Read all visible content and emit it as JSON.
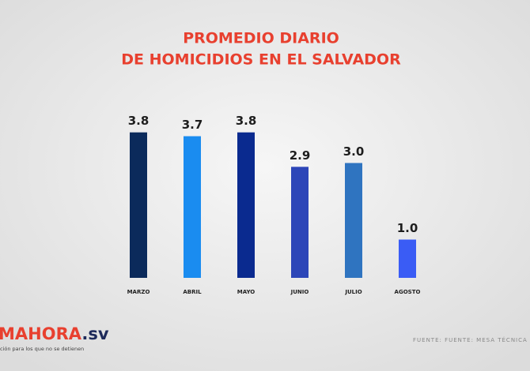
{
  "chart_data": {
    "type": "bar",
    "title": [
      "PROMEDIO DIARIO",
      "DE HOMICIDIOS EN EL SALVADOR"
    ],
    "categories": [
      "MARZO",
      "ABRIL",
      "MAYO",
      "JUNIO",
      "JULIO",
      "AGOSTO"
    ],
    "values": [
      3.8,
      3.7,
      3.8,
      2.9,
      3.0,
      1.0
    ],
    "value_labels": [
      "3.8",
      "3.7",
      "3.8",
      "2.9",
      "3.0",
      "1.0"
    ],
    "colors": [
      "#0b2a5b",
      "#1a8cf0",
      "#0a2a8f",
      "#2d46b8",
      "#2f74c0",
      "#3a5cf5"
    ],
    "ylim": [
      0,
      4
    ],
    "logo": {
      "brand": "MAHORA",
      "suffix": ".sv",
      "tagline": "ción para los que no se detienen"
    },
    "source": "FUENTE: FUENTE: MESA TÉCNICA Y PNC"
  }
}
